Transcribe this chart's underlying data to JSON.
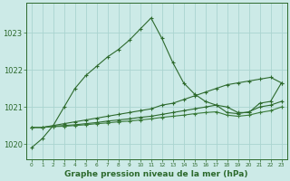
{
  "hours": [
    0,
    1,
    2,
    3,
    4,
    5,
    6,
    7,
    8,
    9,
    10,
    11,
    12,
    13,
    14,
    15,
    16,
    17,
    18,
    19,
    20,
    21,
    22,
    23
  ],
  "line_main": [
    1019.9,
    1020.15,
    1020.5,
    1021.0,
    1021.5,
    1021.85,
    1022.1,
    1022.35,
    1022.55,
    1022.8,
    1023.1,
    1023.4,
    1022.85,
    1022.2,
    1021.65,
    1021.35,
    1021.15,
    1021.05,
    1021.0,
    1020.85,
    1020.85,
    1021.1,
    1021.15,
    1021.65
  ],
  "line_diag_top": [
    1020.45,
    1020.45,
    1020.5,
    1020.55,
    1020.6,
    1020.65,
    1020.7,
    1020.75,
    1020.8,
    1020.85,
    1020.9,
    1020.95,
    1021.05,
    1021.1,
    1021.2,
    1021.3,
    1021.4,
    1021.5,
    1021.6,
    1021.65,
    1021.7,
    1021.75,
    1021.8,
    1021.65
  ],
  "line_diag_mid": [
    1020.45,
    1020.45,
    1020.48,
    1020.5,
    1020.52,
    1020.55,
    1020.58,
    1020.62,
    1020.65,
    1020.68,
    1020.72,
    1020.75,
    1020.8,
    1020.85,
    1020.9,
    1020.95,
    1021.0,
    1021.05,
    1020.85,
    1020.82,
    1020.87,
    1021.0,
    1021.05,
    1021.15
  ],
  "line_diag_bot": [
    1020.45,
    1020.45,
    1020.47,
    1020.48,
    1020.5,
    1020.52,
    1020.55,
    1020.57,
    1020.6,
    1020.62,
    1020.65,
    1020.68,
    1020.72,
    1020.75,
    1020.78,
    1020.82,
    1020.85,
    1020.87,
    1020.78,
    1020.75,
    1020.78,
    1020.85,
    1020.9,
    1021.0
  ],
  "bg_color": "#cceae7",
  "grid_color": "#aad4d0",
  "line_color_dark": "#2d6a2d",
  "line_color_mid": "#3a7a3a",
  "xlabel": "Graphe pression niveau de la mer (hPa)",
  "ylim": [
    1019.6,
    1023.8
  ],
  "xlim": [
    -0.5,
    23.5
  ],
  "yticks": [
    1020,
    1021,
    1022,
    1023
  ],
  "xlabel_color": "#2d6a2d"
}
